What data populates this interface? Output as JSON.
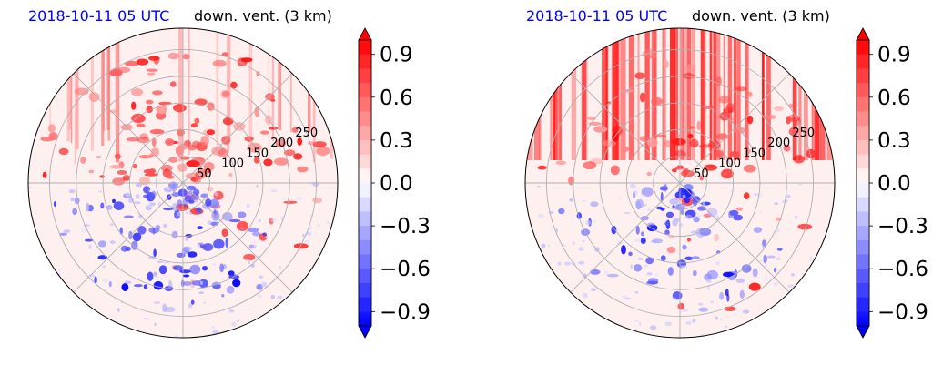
{
  "chart_data": [
    {
      "type": "heatmap",
      "projection": "polar",
      "title_left": "2018-10-11 05 UTC",
      "title_right": "down. vent. (3 km)",
      "radial_ticks": [
        "50",
        "100",
        "150",
        "200",
        "250"
      ],
      "radial_tick_values": [
        50,
        100,
        150,
        200,
        250
      ],
      "rmax": 290,
      "angular_gridlines_deg": [
        0,
        45,
        90,
        135,
        180,
        225,
        270,
        315
      ],
      "grid": true,
      "value_range": [
        -1.0,
        1.0
      ],
      "colormap": "bwr",
      "colorbar": {
        "ticks": [
          "−0.9",
          "−0.6",
          "−0.3",
          "0.0",
          "0.3",
          "0.6",
          "0.9"
        ],
        "tick_values": [
          -0.9,
          -0.6,
          -0.3,
          0.0,
          0.3,
          0.6,
          0.9
        ],
        "extend": "both",
        "levels": 20
      },
      "pattern_seed": 11
    },
    {
      "type": "heatmap",
      "projection": "polar",
      "title_left": "2018-10-11 05 UTC",
      "title_right": "down. vent. (3 km)",
      "radial_ticks": [
        "50",
        "100",
        "150",
        "200",
        "250"
      ],
      "radial_tick_values": [
        50,
        100,
        150,
        200,
        250
      ],
      "rmax": 290,
      "angular_gridlines_deg": [
        0,
        45,
        90,
        135,
        180,
        225,
        270,
        315
      ],
      "grid": true,
      "value_range": [
        -1.0,
        1.0
      ],
      "colormap": "bwr",
      "colorbar": {
        "ticks": [
          "−0.9",
          "−0.6",
          "−0.3",
          "0.0",
          "0.3",
          "0.6",
          "0.9"
        ],
        "tick_values": [
          -0.9,
          -0.6,
          -0.3,
          0.0,
          0.3,
          0.6,
          0.9
        ],
        "extend": "both",
        "levels": 20
      },
      "pattern_seed": 29
    }
  ]
}
